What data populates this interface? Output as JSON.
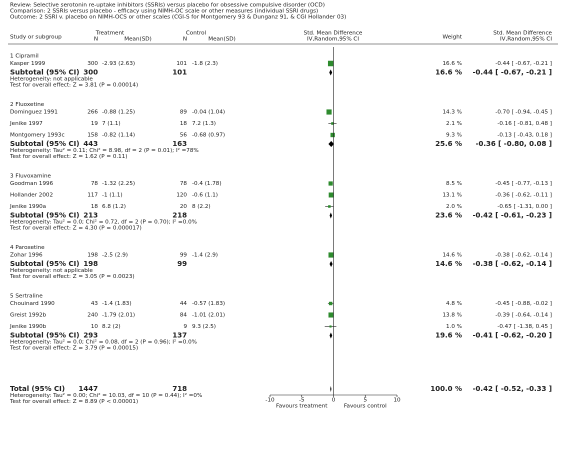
{
  "chart_data": {
    "type": "forest",
    "header": [
      "Review:  Selective serotonin re-uptake inhibitors (SSRIs) versus placebo for obsessive compulsive disorder (OCD)",
      "Comparison:  2 SSRIs versus placebo - efficacy using NIMH-OC scale or other measures (individual SSRI drugs)",
      "Outcome:  2 SSRI v. placebo on NIMH-OCS or other scales (CGI-S for Montgomery 93 & Dunganz 91, & CGI Hollander 03)"
    ],
    "columns": {
      "study": "Study or subgroup",
      "treatment": "Treatment",
      "control": "Control",
      "n": "N",
      "mean_sd": "Mean(SD)",
      "smd": "Std. Mean Difference",
      "method": "IV,Random,95% CI",
      "weight": "Weight"
    },
    "color": "#2e8b2e",
    "groups": [
      {
        "name": "1 Cipramil",
        "studies": [
          {
            "study": "Kasper 1999",
            "treatment_n": 300,
            "treatment_mean_sd": "-2.93 (2.63)",
            "control_n": 101,
            "control_mean_sd": "-1.8 (2.3)",
            "weight": 16.6,
            "weight_label": "16.6 %",
            "smd": -0.44,
            "ci": [
              -0.67,
              -0.21
            ],
            "smd_label": "-0.44 [ -0.67, -0.21 ]"
          }
        ],
        "subtotal": {
          "study": "Subtotal (95% CI)",
          "treatment_n": 300,
          "control_n": 101,
          "weight": 16.6,
          "weight_label": "16.6 %",
          "smd": -0.44,
          "ci": [
            -0.67,
            -0.21
          ],
          "smd_label": "-0.44 [ -0.67, -0.21 ]"
        },
        "heterogeneity": "Heterogeneity: not applicable",
        "test": "Test for overall effect: Z = 3.81 (P = 0.00014)"
      },
      {
        "name": "2 Fluoxetine",
        "studies": [
          {
            "study": "Dominguez 1991",
            "treatment_n": 266,
            "treatment_mean_sd": "-0.88 (1.25)",
            "control_n": 89,
            "control_mean_sd": "-0.04 (1.04)",
            "weight": 14.3,
            "weight_label": "14.3 %",
            "smd": -0.7,
            "ci": [
              -0.94,
              -0.45
            ],
            "smd_label": "-0.70 [ -0.94, -0.45 ]"
          },
          {
            "study": "Jenike 1997",
            "treatment_n": 19,
            "treatment_mean_sd": "7 (1.1)",
            "control_n": 18,
            "control_mean_sd": "7.2 (1.3)",
            "weight": 2.1,
            "weight_label": "2.1 %",
            "smd": -0.16,
            "ci": [
              -0.81,
              0.48
            ],
            "smd_label": "-0.16 [ -0.81, 0.48 ]"
          },
          {
            "study": "Montgomery 1993c",
            "treatment_n": 158,
            "treatment_mean_sd": "-0.82 (1.14)",
            "control_n": 56,
            "control_mean_sd": "-0.68 (0.97)",
            "weight": 9.3,
            "weight_label": "9.3 %",
            "smd": -0.13,
            "ci": [
              -0.43,
              0.18
            ],
            "smd_label": "-0.13 [ -0.43, 0.18 ]"
          }
        ],
        "subtotal": {
          "study": "Subtotal (95% CI)",
          "treatment_n": 443,
          "control_n": 163,
          "weight": 25.6,
          "weight_label": "25.6 %",
          "smd": -0.36,
          "ci": [
            -0.8,
            0.08
          ],
          "smd_label": "-0.36 [ -0.80, 0.08 ]"
        },
        "heterogeneity": "Heterogeneity: Tau² = 0.11; Chi² = 8.98, df = 2 (P = 0.01); I² =78%",
        "test": "Test for overall effect: Z = 1.62 (P = 0.11)"
      },
      {
        "name": "3 Fluvoxamine",
        "studies": [
          {
            "study": "Goodman 1996",
            "treatment_n": 78,
            "treatment_mean_sd": "-1.32 (2.25)",
            "control_n": 78,
            "control_mean_sd": "-0.4 (1.78)",
            "weight": 8.5,
            "weight_label": "8.5 %",
            "smd": -0.45,
            "ci": [
              -0.77,
              -0.13
            ],
            "smd_label": "-0.45 [ -0.77, -0.13 ]"
          },
          {
            "study": "Hollander 2002",
            "treatment_n": 117,
            "treatment_mean_sd": "-1 (1.1)",
            "control_n": 120,
            "control_mean_sd": "-0.6 (1.1)",
            "weight": 13.1,
            "weight_label": "13.1 %",
            "smd": -0.36,
            "ci": [
              -0.62,
              -0.11
            ],
            "smd_label": "-0.36 [ -0.62, -0.11 ]"
          },
          {
            "study": "Jenike 1990a",
            "treatment_n": 18,
            "treatment_mean_sd": "6.8 (1.2)",
            "control_n": 20,
            "control_mean_sd": "8 (2.2)",
            "weight": 2.0,
            "weight_label": "2.0 %",
            "smd": -0.65,
            "ci": [
              -1.31,
              0.0
            ],
            "smd_label": "-0.65 [ -1.31, 0.00 ]"
          }
        ],
        "subtotal": {
          "study": "Subtotal (95% CI)",
          "treatment_n": 213,
          "control_n": 218,
          "weight": 23.6,
          "weight_label": "23.6 %",
          "smd": -0.42,
          "ci": [
            -0.61,
            -0.23
          ],
          "smd_label": "-0.42 [ -0.61, -0.23 ]"
        },
        "heterogeneity": "Heterogeneity: Tau² = 0.0; Chi² = 0.72, df = 2 (P = 0.70); I² =0.0%",
        "test": "Test for overall effect: Z = 4.30 (P = 0.000017)"
      },
      {
        "name": "4 Paroxetine",
        "studies": [
          {
            "study": "Zohar 1996",
            "treatment_n": 198,
            "treatment_mean_sd": "-2.5 (2.9)",
            "control_n": 99,
            "control_mean_sd": "-1.4 (2.9)",
            "weight": 14.6,
            "weight_label": "14.6 %",
            "smd": -0.38,
            "ci": [
              -0.62,
              -0.14
            ],
            "smd_label": "-0.38 [ -0.62, -0.14 ]"
          }
        ],
        "subtotal": {
          "study": "Subtotal (95% CI)",
          "treatment_n": 198,
          "control_n": 99,
          "weight": 14.6,
          "weight_label": "14.6 %",
          "smd": -0.38,
          "ci": [
            -0.62,
            -0.14
          ],
          "smd_label": "-0.38 [ -0.62, -0.14 ]"
        },
        "heterogeneity": "Heterogeneity: not applicable",
        "test": "Test for overall effect: Z = 3.05 (P = 0.0023)"
      },
      {
        "name": "5 Sertraline",
        "studies": [
          {
            "study": "Chouinard 1990",
            "treatment_n": 43,
            "treatment_mean_sd": "-1.4 (1.83)",
            "control_n": 44,
            "control_mean_sd": "-0.57 (1.83)",
            "weight": 4.8,
            "weight_label": "4.8 %",
            "smd": -0.45,
            "ci": [
              -0.88,
              -0.02
            ],
            "smd_label": "-0.45 [ -0.88, -0.02 ]"
          },
          {
            "study": "Greist 1992b",
            "treatment_n": 240,
            "treatment_mean_sd": "-1.79 (2.01)",
            "control_n": 84,
            "control_mean_sd": "-1.01 (2.01)",
            "weight": 13.8,
            "weight_label": "13.8 %",
            "smd": -0.39,
            "ci": [
              -0.64,
              -0.14
            ],
            "smd_label": "-0.39 [ -0.64, -0.14 ]"
          },
          {
            "study": "Jenike 1990b",
            "treatment_n": 10,
            "treatment_mean_sd": "8.2 (2)",
            "control_n": 9,
            "control_mean_sd": "9.3 (2.5)",
            "weight": 1.0,
            "weight_label": "1.0 %",
            "smd": -0.47,
            "ci": [
              -1.38,
              0.45
            ],
            "smd_label": "-0.47 [ -1.38, 0.45 ]"
          }
        ],
        "subtotal": {
          "study": "Subtotal (95% CI)",
          "treatment_n": 293,
          "control_n": 137,
          "weight": 19.6,
          "weight_label": "19.6 %",
          "smd": -0.41,
          "ci": [
            -0.62,
            -0.2
          ],
          "smd_label": "-0.41 [ -0.62, -0.20 ]"
        },
        "heterogeneity": "Heterogeneity: Tau² = 0.0; Chi² = 0.08, df = 2 (P = 0.96); I² =0.0%",
        "test": "Test for overall effect: Z = 3.79 (P = 0.00015)"
      }
    ],
    "total": {
      "study": "Total (95% CI)",
      "treatment_n": 1447,
      "control_n": 718,
      "weight": 100.0,
      "weight_label": "100.0 %",
      "smd": -0.42,
      "ci": [
        -0.52,
        -0.33
      ],
      "smd_label": "-0.42 [ -0.52, -0.33 ]",
      "heterogeneity": "Heterogeneity: Tau² = 0.00; Chi² = 10.03, df = 10 (P = 0.44); I² =0%",
      "test": "Test for overall effect: Z = 8.89 (P < 0.00001)"
    },
    "xlim": [
      -10,
      10
    ],
    "xticks": [
      -10,
      -5,
      0,
      5,
      10
    ],
    "xlabel_left": "Favours treatment",
    "xlabel_right": "Favours control"
  }
}
